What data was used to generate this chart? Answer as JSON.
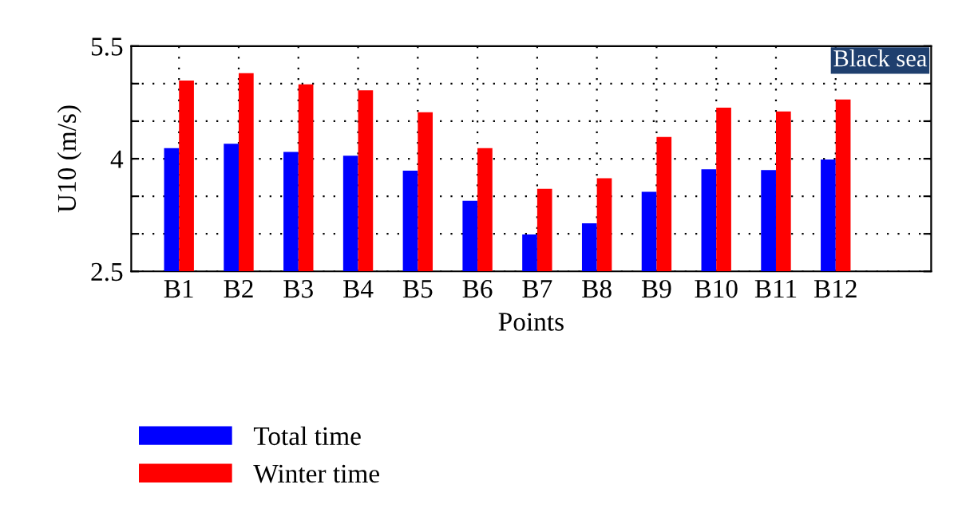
{
  "chart_data": {
    "type": "bar",
    "xlabel": "Points",
    "ylabel": "U10 (m/s)",
    "annotations": [
      "Black sea"
    ],
    "categories": [
      "B1",
      "B2",
      "B3",
      "B4",
      "B5",
      "B6",
      "B7",
      "B8",
      "B9",
      "B10",
      "B11",
      "B12"
    ],
    "series": [
      {
        "name": "Total time",
        "color": "#0000ff",
        "values": [
          4.14,
          4.2,
          4.09,
          4.04,
          3.84,
          3.44,
          2.99,
          3.14,
          3.56,
          3.86,
          3.85,
          3.99
        ]
      },
      {
        "name": "Winter time",
        "color": "#ff0000",
        "values": [
          5.04,
          5.14,
          4.99,
          4.91,
          4.62,
          4.14,
          3.6,
          3.74,
          4.29,
          4.68,
          4.63,
          4.79
        ]
      }
    ],
    "ylim": [
      2.5,
      5.5
    ],
    "yticks": [
      2.5,
      {
        "value": 3,
        "label": null
      },
      {
        "value": 3.5,
        "label": null
      },
      4,
      {
        "value": 4.5,
        "label": null
      },
      {
        "value": 5,
        "label": null
      },
      5.5
    ],
    "grid": true,
    "legend": "bottom left"
  }
}
